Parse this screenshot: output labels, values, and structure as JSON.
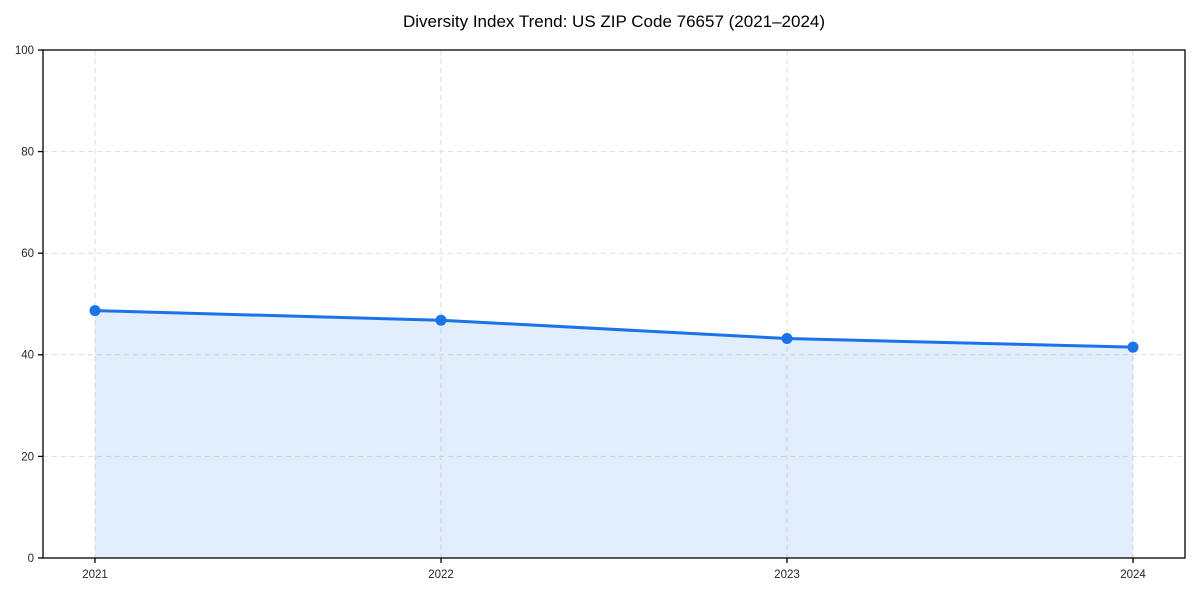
{
  "chart_data": {
    "type": "area",
    "title": "Diversity Index Trend: US ZIP Code 76657 (2021–2024)",
    "categories": [
      "2021",
      "2022",
      "2023",
      "2024"
    ],
    "series": [
      {
        "name": "Diversity Index",
        "values": [
          48.7,
          46.8,
          43.2,
          41.5
        ]
      }
    ],
    "xlabel": "",
    "ylabel": "",
    "ylim": [
      0,
      100
    ],
    "yticks": [
      0,
      20,
      40,
      60,
      80,
      100
    ],
    "grid": true,
    "grid_style": "dashed",
    "legend": "none",
    "marker": "circle",
    "colors": {
      "line": "#1a73e8",
      "marker": "#1a73e8",
      "fill": "rgba(26,115,232,0.12)",
      "grid": "#dcdcdc",
      "spine": "#000000",
      "tick_label": "#262626",
      "title": "#000000"
    }
  }
}
